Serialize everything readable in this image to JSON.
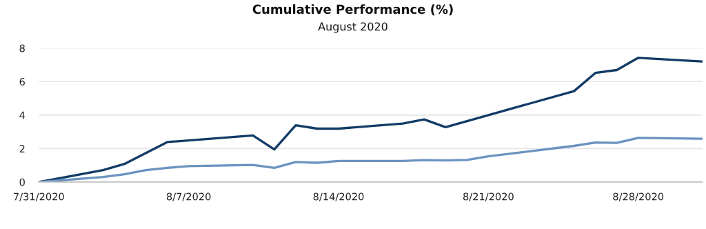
{
  "chart_data": {
    "type": "line",
    "title": "Cumulative Performance (%)",
    "subtitle": "August 2020",
    "series": [
      {
        "color": "#123b66",
        "x": [
          "2020-07-31",
          "2020-08-03",
          "2020-08-04",
          "2020-08-06",
          "2020-08-10",
          "2020-08-11",
          "2020-08-12",
          "2020-08-13",
          "2020-08-14",
          "2020-08-17",
          "2020-08-18",
          "2020-08-19",
          "2020-08-25",
          "2020-08-26",
          "2020-08-27",
          "2020-08-28",
          "2020-08-31"
        ],
        "values": [
          0,
          0.71,
          1.08,
          2.39,
          2.78,
          1.95,
          3.39,
          3.19,
          3.19,
          3.49,
          3.74,
          3.28,
          5.43,
          6.52,
          6.69,
          7.42,
          7.2
        ]
      },
      {
        "color": "#6b93c0",
        "x": [
          "2020-07-31",
          "2020-08-03",
          "2020-08-04",
          "2020-08-05",
          "2020-08-06",
          "2020-08-07",
          "2020-08-10",
          "2020-08-11",
          "2020-08-12",
          "2020-08-13",
          "2020-08-14",
          "2020-08-17",
          "2020-08-18",
          "2020-08-19",
          "2020-08-20",
          "2020-08-21",
          "2020-08-25",
          "2020-08-26",
          "2020-08-27",
          "2020-08-28",
          "2020-08-31"
        ],
        "values": [
          0,
          0.3,
          0.47,
          0.71,
          0.85,
          0.95,
          1.02,
          0.85,
          1.2,
          1.15,
          1.26,
          1.26,
          1.31,
          1.29,
          1.32,
          1.54,
          2.16,
          2.36,
          2.34,
          2.64,
          2.59
        ]
      }
    ],
    "xlim": [
      "2020-07-31",
      "2020-08-31"
    ],
    "xticks": [
      {
        "value": "2020-07-31",
        "label": "7/31/2020"
      },
      {
        "value": "2020-08-07",
        "label": "8/7/2020"
      },
      {
        "value": "2020-08-14",
        "label": "8/14/2020"
      },
      {
        "value": "2020-08-21",
        "label": "8/21/2020"
      },
      {
        "value": "2020-08-28",
        "label": "8/28/2020"
      }
    ],
    "ylim": [
      0,
      8
    ],
    "yticks": [
      0,
      2,
      4,
      6,
      8
    ],
    "grid": "y",
    "line_style": "solid"
  }
}
